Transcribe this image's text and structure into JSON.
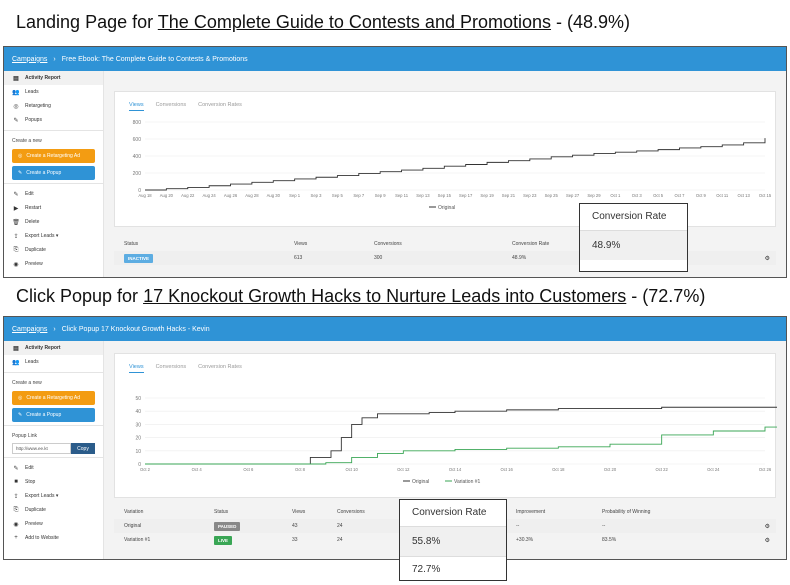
{
  "heading1": {
    "prefix": "Landing Page for ",
    "link": "The Complete Guide to Contests and Promotions",
    "suffix": "  - (48.9%)"
  },
  "heading2": {
    "prefix": "Click Popup for ",
    "link": "17 Knockout Growth Hacks to Nurture Leads into Customers",
    "suffix": " - (72.7%)"
  },
  "screen1": {
    "breadcrumb": {
      "root": "Campaigns",
      "sep": "›",
      "page": "Free Ebook: The Complete Guide to Contests & Promotions"
    },
    "sidebar": {
      "items_top": [
        {
          "icon": "▤",
          "label": "Activity Report",
          "active": true
        },
        {
          "icon": "👥",
          "label": "Leads"
        },
        {
          "icon": "◎",
          "label": "Retargeting"
        },
        {
          "icon": "✎",
          "label": "Popups"
        }
      ],
      "create_label": "Create a new",
      "btn_retarget": "Create a Retargeting Ad",
      "btn_popup": "Create a Popup",
      "items_bottom": [
        {
          "icon": "✎",
          "label": "Edit"
        },
        {
          "icon": "▶",
          "label": "Restart"
        },
        {
          "icon": "🗑",
          "label": "Delete"
        },
        {
          "icon": "⇪",
          "label": "Export Leads ▾"
        },
        {
          "icon": "⎘",
          "label": "Duplicate"
        },
        {
          "icon": "◉",
          "label": "Preview"
        }
      ]
    },
    "tabs": [
      "Views",
      "Conversions",
      "Conversion Rates"
    ],
    "chart_data": {
      "type": "line",
      "yticks": [
        "800",
        "600",
        "400",
        "200",
        "0"
      ],
      "ylim": [
        0,
        800
      ],
      "categories": [
        "Aug 18",
        "Aug 20",
        "Aug 22",
        "Aug 24",
        "Aug 26",
        "Aug 28",
        "Aug 30",
        "Sep 1",
        "Sep 3",
        "Sep 5",
        "Sep 7",
        "Sep 9",
        "Sep 11",
        "Sep 13",
        "Sep 15",
        "Sep 17",
        "Sep 19",
        "Sep 21",
        "Sep 23",
        "Sep 25",
        "Sep 27",
        "Sep 29",
        "Oct 1",
        "Oct 3",
        "Oct 5",
        "Oct 7",
        "Oct 9",
        "Oct 11",
        "Oct 13",
        "Oct 15"
      ],
      "series": [
        {
          "name": "Original",
          "color": "#333333",
          "values": [
            0,
            15,
            30,
            50,
            70,
            90,
            110,
            130,
            150,
            170,
            195,
            215,
            235,
            255,
            280,
            300,
            325,
            345,
            365,
            390,
            410,
            430,
            445,
            460,
            475,
            495,
            510,
            530,
            555,
            610
          ]
        }
      ]
    },
    "table": {
      "headers": [
        "Status",
        "Views",
        "Conversions",
        "Conversion Rate"
      ],
      "row": {
        "status": "INACTIVE",
        "views": "613",
        "conversions": "300",
        "rate": "48.9%"
      }
    },
    "callout": {
      "title": "Conversion Rate",
      "value": "48.9%"
    }
  },
  "screen2": {
    "breadcrumb": {
      "root": "Campaigns",
      "sep": "›",
      "page": "Click Popup 17 Knockout Growth Hacks - Kevin"
    },
    "sidebar": {
      "items_top": [
        {
          "icon": "▤",
          "label": "Activity Report",
          "active": true
        },
        {
          "icon": "👥",
          "label": "Leads"
        }
      ],
      "create_label": "Create a new",
      "btn_retarget": "Create a Retargeting Ad",
      "btn_popup": "Create a Popup",
      "popup_link_label": "Popup Link",
      "popup_link_value": "http://www.ee.kt",
      "copy_label": "Copy",
      "items_bottom": [
        {
          "icon": "✎",
          "label": "Edit"
        },
        {
          "icon": "■",
          "label": "Stop"
        },
        {
          "icon": "⇪",
          "label": "Export Leads ▾"
        },
        {
          "icon": "⎘",
          "label": "Duplicate"
        },
        {
          "icon": "◉",
          "label": "Preview"
        },
        {
          "icon": "+",
          "label": "Add to Website"
        }
      ]
    },
    "tabs": [
      "Views",
      "Conversions",
      "Conversion Rates"
    ],
    "chart_data": {
      "type": "line",
      "yticks": [
        "50",
        "40",
        "30",
        "20",
        "10",
        "0"
      ],
      "ylim": [
        0,
        50
      ],
      "categories": [
        "Oct 2",
        "Oct 4",
        "Oct 6",
        "Oct 8",
        "Oct 10",
        "Oct 12",
        "Oct 14",
        "Oct 16",
        "Oct 18",
        "Oct 20",
        "Oct 22",
        "Oct 24",
        "Oct 26"
      ],
      "series": [
        {
          "name": "Original",
          "color": "#333333",
          "x": [
            0,
            0.5,
            1,
            1.5,
            2,
            2.5,
            3,
            3.2,
            3.4,
            3.6,
            3.8,
            4.0,
            4.2,
            4.5,
            5,
            5.5,
            6,
            7,
            8,
            9,
            10,
            11,
            12,
            12.5
          ],
          "values": [
            0,
            0,
            0,
            0,
            0,
            0,
            0,
            5,
            5,
            10,
            20,
            30,
            35,
            38,
            38,
            39,
            40,
            41,
            42,
            42,
            43,
            43,
            43,
            44
          ]
        },
        {
          "name": "Variation #1",
          "color": "#3aa655",
          "x": [
            0,
            3,
            3.5,
            4,
            4.5,
            5,
            6,
            7,
            8,
            9,
            10,
            11,
            12,
            12.5
          ],
          "values": [
            0,
            0,
            1,
            5,
            8,
            10,
            11,
            12,
            13,
            15,
            22,
            25,
            28,
            33
          ]
        }
      ]
    },
    "table": {
      "headers": [
        "Variation",
        "Status",
        "Views",
        "Conversions",
        "Improvement",
        "Probability of Winning"
      ],
      "rows": [
        {
          "variation": "Original",
          "status": "PAUSED",
          "status_color": "#888888",
          "views": "43",
          "conversions": "24",
          "improvement": "--",
          "probability": "--"
        },
        {
          "variation": "Variation #1",
          "status": "LIVE",
          "status_color": "#3aa655",
          "views": "33",
          "conversions": "24",
          "improvement": "+30.3%",
          "probability": "83.5%"
        }
      ]
    },
    "callout": {
      "title": "Conversion Rate",
      "values": [
        "55.8%",
        "72.7%"
      ]
    }
  }
}
